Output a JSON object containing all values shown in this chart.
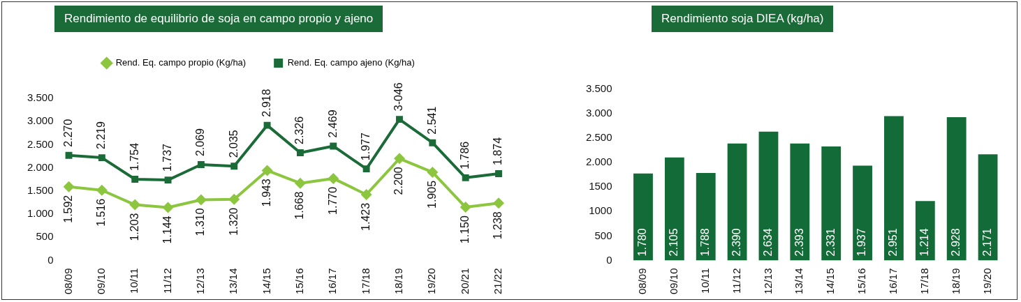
{
  "chart_data": [
    {
      "type": "line",
      "title": "Rendimiento de equilibrio de soja en campo propio y ajeno",
      "categories": [
        "08/09",
        "09/10",
        "10/11",
        "11/12",
        "12/13",
        "13/14",
        "14/15",
        "15/16",
        "16/17",
        "17/18",
        "18/19",
        "19/20",
        "20/21",
        "21/22"
      ],
      "series": [
        {
          "name": "Rend. Eq. campo propio (Kg/ha)",
          "color": "#8cc63f",
          "marker": "diamond",
          "values": [
            1592,
            1516,
            1203,
            1144,
            1310,
            1320,
            1943,
            1668,
            1770,
            1423,
            2200,
            1905,
            1150,
            1238
          ],
          "value_labels": [
            "1.592",
            "1.516",
            "1.203",
            "1.144",
            "1.310",
            "1.320",
            "1.943",
            "1.668",
            "1.770",
            "1.423",
            "2.200",
            "1.905",
            "1.150",
            "1.238"
          ]
        },
        {
          "name": "Rend. Eq. campo ajeno (Kg/ha)",
          "color": "#1b6b38",
          "marker": "square",
          "values": [
            2270,
            2219,
            1754,
            1737,
            2069,
            2035,
            2918,
            2326,
            2469,
            1977,
            3046,
            2541,
            1786,
            1874
          ],
          "value_labels": [
            "2.270",
            "2.219",
            "1.754",
            "1.737",
            "2.069",
            "2.035",
            "2.918",
            "2.326",
            "2.469",
            "1.977",
            "3-046",
            "2.541",
            "1.786",
            "1.874"
          ]
        }
      ],
      "ylim": [
        0,
        3500
      ],
      "yticks": [
        0,
        {
          "value": 500,
          "label": "500"
        },
        {
          "value": 1000,
          "label": "1.000"
        },
        {
          "value": 1500,
          "label": "1.500"
        },
        {
          "value": 2000,
          "label": "2.000"
        },
        {
          "value": 2500,
          "label": "2.500"
        },
        {
          "value": 3000,
          "label": "3.000"
        },
        {
          "value": 3500,
          "label": "3.500"
        }
      ],
      "legend": "top"
    },
    {
      "type": "bar",
      "title": "Rendimiento soja DIEA (kg/ha)",
      "categories": [
        "08/09",
        "09/10",
        "10/11",
        "11/12",
        "12/13",
        "13/14",
        "14/15",
        "15/16",
        "16/17",
        "17/18",
        "18/19",
        "19/20"
      ],
      "series": [
        {
          "color": "#136b38",
          "values": [
            1780,
            2105,
            1788,
            2390,
            2634,
            2393,
            2331,
            1937,
            2951,
            1214,
            2928,
            2171
          ],
          "value_labels": [
            "1.780",
            "2.105",
            "1.788",
            "2.390",
            "2.634",
            "2.393",
            "2.331",
            "1.937",
            "2.951",
            "1.214",
            "2.928",
            "2.171"
          ]
        }
      ],
      "ylim": [
        0,
        3500
      ],
      "yticks": [
        0,
        {
          "value": 500,
          "label": "500"
        },
        {
          "value": 1000,
          "label": "1000"
        },
        {
          "value": 1500,
          "label": "1500"
        },
        {
          "value": 2000,
          "label": "2.000"
        },
        {
          "value": 2500,
          "label": "2.500"
        },
        {
          "value": 3000,
          "label": "3.000"
        },
        {
          "value": 3500,
          "label": "3.500"
        }
      ]
    }
  ]
}
